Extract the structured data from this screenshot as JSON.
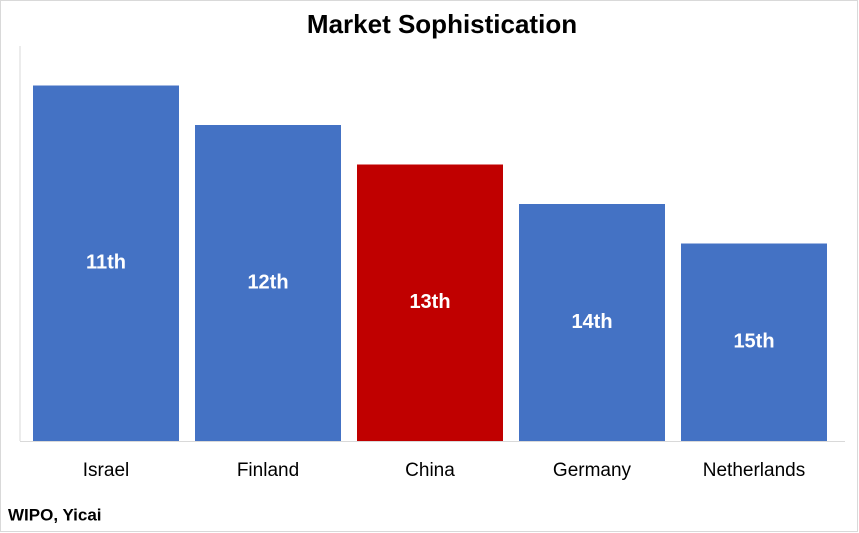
{
  "chart_data": {
    "type": "bar",
    "title": "Market Sophistication",
    "categories": [
      "Israel",
      "Finland",
      "China",
      "Germany",
      "Netherlands"
    ],
    "values": [
      11,
      12,
      13,
      14,
      15
    ],
    "value_labels": [
      "11th",
      "12th",
      "13th",
      "14th",
      "15th"
    ],
    "colors": [
      "#4472c4",
      "#4472c4",
      "#c00000",
      "#4472c4",
      "#4472c4"
    ],
    "ylim": [
      20,
      10
    ],
    "source": "WIPO, Yicai"
  }
}
